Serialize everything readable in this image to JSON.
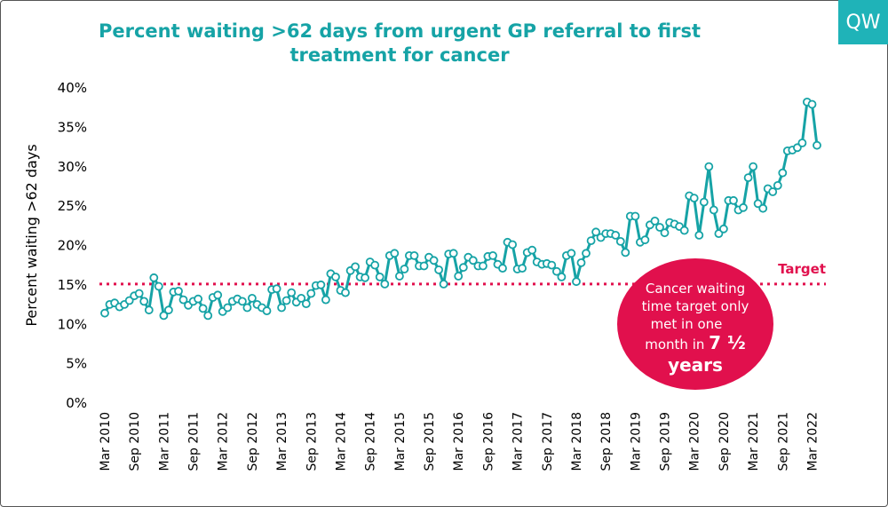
{
  "logo": "QW",
  "chart_data": {
    "type": "line",
    "title": "Percent waiting >62 days from urgent GP referral to first treatment for cancer",
    "ylabel": "Percent waiting >62 days",
    "xlabel": "",
    "ylim": [
      0,
      40
    ],
    "yticks": [
      "0%",
      "5%",
      "10%",
      "15%",
      "20%",
      "25%",
      "30%",
      "35%",
      "40%"
    ],
    "xticks": [
      "Mar 2010",
      "Sep 2010",
      "Mar 2011",
      "Sep 2011",
      "Mar 2012",
      "Sep 2012",
      "Mar 2013",
      "Sep 2013",
      "Mar 2014",
      "Sep 2014",
      "Mar 2015",
      "Sep 2015",
      "Mar 2016",
      "Sep 2016",
      "Mar 2017",
      "Sep 2017",
      "Mar 2018",
      "Sep 2018",
      "Mar 2019",
      "Sep 2019",
      "Mar 2020",
      "Sep 2020",
      "Mar 2021",
      "Sep 2021",
      "Mar 2022"
    ],
    "target": {
      "value": 15,
      "label": "Target"
    },
    "annotation": {
      "line1": "Cancer waiting",
      "line2": "time target only",
      "line3": "met in one",
      "line4_a": "month in ",
      "line4_b": "7 ½",
      "line5": "years"
    },
    "series": [
      {
        "name": "Percent waiting >62 days",
        "start": "Mar 2010",
        "values": [
          11.3,
          12.4,
          12.6,
          12.1,
          12.4,
          12.9,
          13.5,
          13.8,
          12.8,
          11.7,
          15.8,
          14.7,
          11.0,
          11.7,
          14.0,
          14.1,
          13.0,
          12.3,
          12.8,
          13.1,
          11.9,
          11.0,
          13.3,
          13.6,
          11.5,
          12.0,
          12.8,
          13.1,
          12.8,
          12.0,
          13.2,
          12.4,
          12.0,
          11.6,
          14.3,
          14.4,
          12.0,
          12.9,
          13.9,
          12.7,
          13.2,
          12.5,
          13.8,
          14.8,
          14.9,
          13.0,
          16.3,
          15.9,
          14.2,
          13.9,
          16.7,
          17.2,
          15.9,
          15.8,
          17.8,
          17.4,
          15.9,
          15.0,
          18.6,
          18.9,
          16.0,
          16.9,
          18.6,
          18.6,
          17.3,
          17.3,
          18.4,
          18.0,
          16.8,
          15.0,
          18.8,
          18.9,
          16.0,
          17.1,
          18.4,
          18.0,
          17.3,
          17.3,
          18.5,
          18.6,
          17.5,
          17.0,
          20.3,
          20.0,
          16.9,
          17.0,
          19.0,
          19.3,
          17.8,
          17.5,
          17.6,
          17.4,
          16.6,
          15.9,
          18.6,
          18.9,
          15.3,
          17.7,
          18.9,
          20.5,
          21.6,
          20.9,
          21.4,
          21.4,
          21.2,
          20.4,
          19.0,
          23.6,
          23.6,
          20.3,
          20.6,
          22.5,
          23.0,
          22.2,
          21.5,
          22.8,
          22.6,
          22.3,
          21.8,
          26.2,
          25.9,
          21.2,
          25.4,
          29.9,
          24.4,
          21.4,
          22.0,
          25.6,
          25.6,
          24.4,
          24.7,
          28.5,
          29.9,
          25.2,
          24.6,
          27.1,
          26.7,
          27.5,
          29.1,
          31.9,
          32.0,
          32.3,
          32.9,
          38.1,
          37.8,
          32.6
        ]
      }
    ]
  }
}
